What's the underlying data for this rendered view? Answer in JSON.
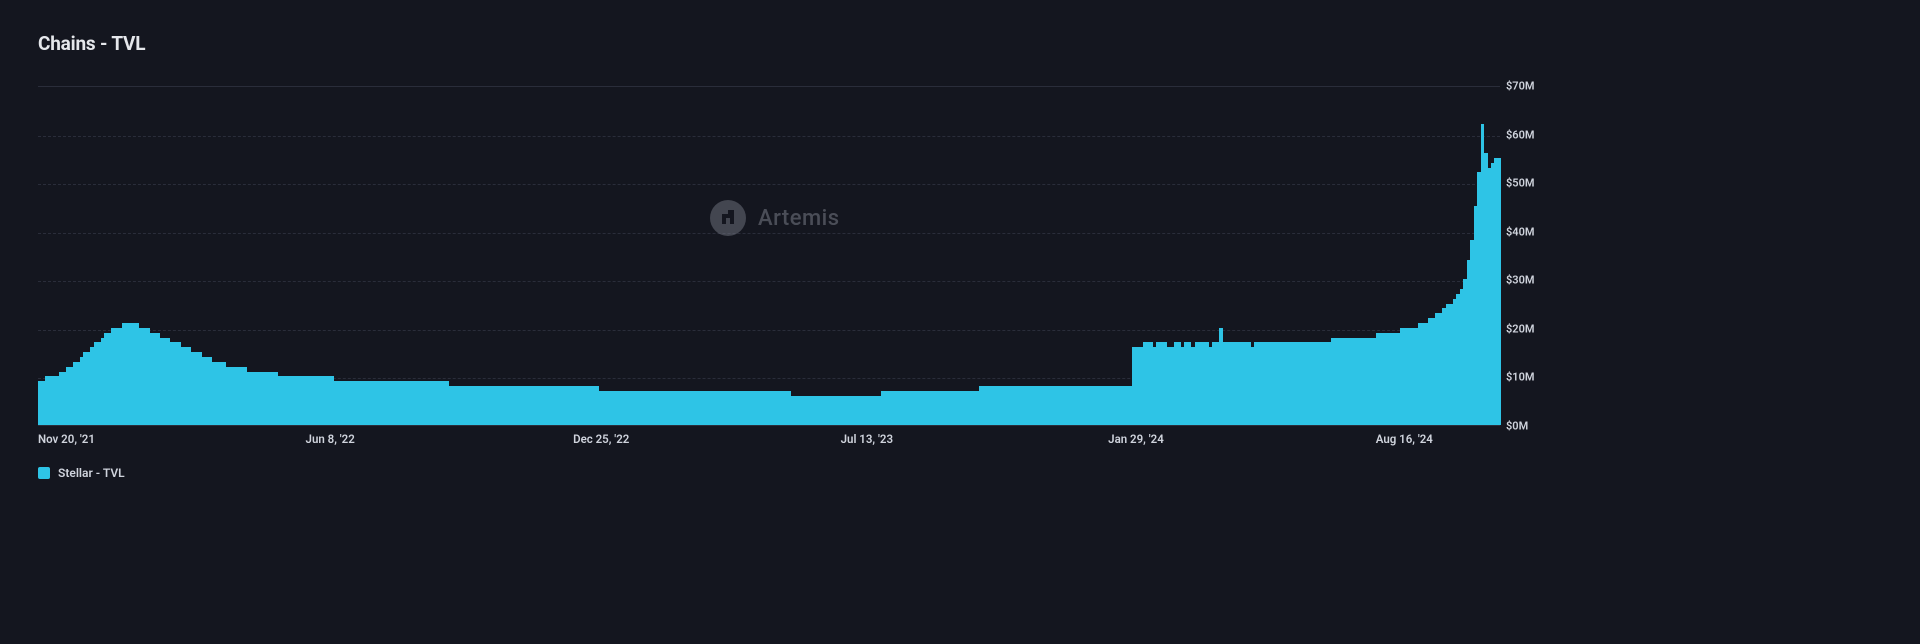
{
  "title": "Chains - TVL",
  "legend": {
    "label": "Stellar - TVL",
    "swatch_color": "#2ec4e6"
  },
  "watermark": {
    "text": "Artemis",
    "badge_bg": "#7d808c",
    "text_color": "#8d909c"
  },
  "colors": {
    "page_bg": "#14161f",
    "grid": "#2a2d3a",
    "axis_text": "#cfd3dc",
    "bar": "#2ec4e6"
  },
  "chart": {
    "type": "bar",
    "y": {
      "min": 0,
      "max": 70,
      "unit_prefix": "$",
      "unit_suffix": "M",
      "ticks": [
        0,
        10,
        20,
        30,
        40,
        50,
        60,
        70
      ]
    },
    "x": {
      "ticks": [
        {
          "pos": 0.0,
          "label": "Nov 20, '21"
        },
        {
          "pos": 0.183,
          "label": "Jun 8, '22"
        },
        {
          "pos": 0.366,
          "label": "Dec 25, '22"
        },
        {
          "pos": 0.549,
          "label": "Jul 13, '23"
        },
        {
          "pos": 0.732,
          "label": "Jan 29, '24"
        },
        {
          "pos": 0.915,
          "label": "Aug 16, '24"
        }
      ]
    },
    "series_name": "Stellar - TVL",
    "n_bars": 420,
    "values": [
      9,
      9,
      10,
      10,
      10,
      10,
      11,
      11,
      12,
      12,
      13,
      13,
      14,
      15,
      15,
      16,
      17,
      17,
      18,
      19,
      19,
      20,
      20,
      20,
      21,
      21,
      21,
      21,
      21,
      20,
      20,
      20,
      19,
      19,
      19,
      18,
      18,
      18,
      17,
      17,
      17,
      16,
      16,
      16,
      15,
      15,
      15,
      14,
      14,
      14,
      13,
      13,
      13,
      13,
      12,
      12,
      12,
      12,
      12,
      12,
      11,
      11,
      11,
      11,
      11,
      11,
      11,
      11,
      11,
      10,
      10,
      10,
      10,
      10,
      10,
      10,
      10,
      10,
      10,
      10,
      10,
      10,
      10,
      10,
      10,
      9,
      9,
      9,
      9,
      9,
      9,
      9,
      9,
      9,
      9,
      9,
      9,
      9,
      9,
      9,
      9,
      9,
      9,
      9,
      9,
      9,
      9,
      9,
      9,
      9,
      9,
      9,
      9,
      9,
      9,
      9,
      9,
      9,
      8,
      8,
      8,
      8,
      8,
      8,
      8,
      8,
      8,
      8,
      8,
      8,
      8,
      8,
      8,
      8,
      8,
      8,
      8,
      8,
      8,
      8,
      8,
      8,
      8,
      8,
      8,
      8,
      8,
      8,
      8,
      8,
      8,
      8,
      8,
      8,
      8,
      8,
      8,
      8,
      8,
      8,
      8,
      7,
      7,
      7,
      7,
      7,
      7,
      7,
      7,
      7,
      7,
      7,
      7,
      7,
      7,
      7,
      7,
      7,
      7,
      7,
      7,
      7,
      7,
      7,
      7,
      7,
      7,
      7,
      7,
      7,
      7,
      7,
      7,
      7,
      7,
      7,
      7,
      7,
      7,
      7,
      7,
      7,
      7,
      7,
      7,
      7,
      7,
      7,
      7,
      7,
      7,
      7,
      7,
      7,
      7,
      7,
      6,
      6,
      6,
      6,
      6,
      6,
      6,
      6,
      6,
      6,
      6,
      6,
      6,
      6,
      6,
      6,
      6,
      6,
      6,
      6,
      6,
      6,
      6,
      6,
      6,
      6,
      7,
      7,
      7,
      7,
      7,
      7,
      7,
      7,
      7,
      7,
      7,
      7,
      7,
      7,
      7,
      7,
      7,
      7,
      7,
      7,
      7,
      7,
      7,
      7,
      7,
      7,
      7,
      7,
      8,
      8,
      8,
      8,
      8,
      8,
      8,
      8,
      8,
      8,
      8,
      8,
      8,
      8,
      8,
      8,
      8,
      8,
      8,
      8,
      8,
      8,
      8,
      8,
      8,
      8,
      8,
      8,
      8,
      8,
      8,
      8,
      8,
      8,
      8,
      8,
      8,
      8,
      8,
      8,
      8,
      8,
      8,
      8,
      16,
      16,
      16,
      17,
      17,
      17,
      16,
      17,
      17,
      17,
      16,
      16,
      17,
      17,
      16,
      17,
      17,
      16,
      17,
      17,
      17,
      17,
      16,
      17,
      17,
      20,
      17,
      17,
      17,
      17,
      17,
      17,
      17,
      17,
      16,
      17,
      17,
      17,
      17,
      17,
      17,
      17,
      17,
      17,
      17,
      17,
      17,
      17,
      17,
      17,
      17,
      17,
      17,
      17,
      17,
      17,
      17,
      18,
      18,
      18,
      18,
      18,
      18,
      18,
      18,
      18,
      18,
      18,
      18,
      18,
      19,
      19,
      19,
      19,
      19,
      19,
      19,
      20,
      20,
      20,
      20,
      20,
      21,
      21,
      21,
      22,
      22,
      23,
      23,
      24,
      25,
      25,
      26,
      27,
      28,
      30,
      34,
      38,
      45,
      52,
      62,
      56,
      53,
      54,
      55,
      55
    ]
  }
}
